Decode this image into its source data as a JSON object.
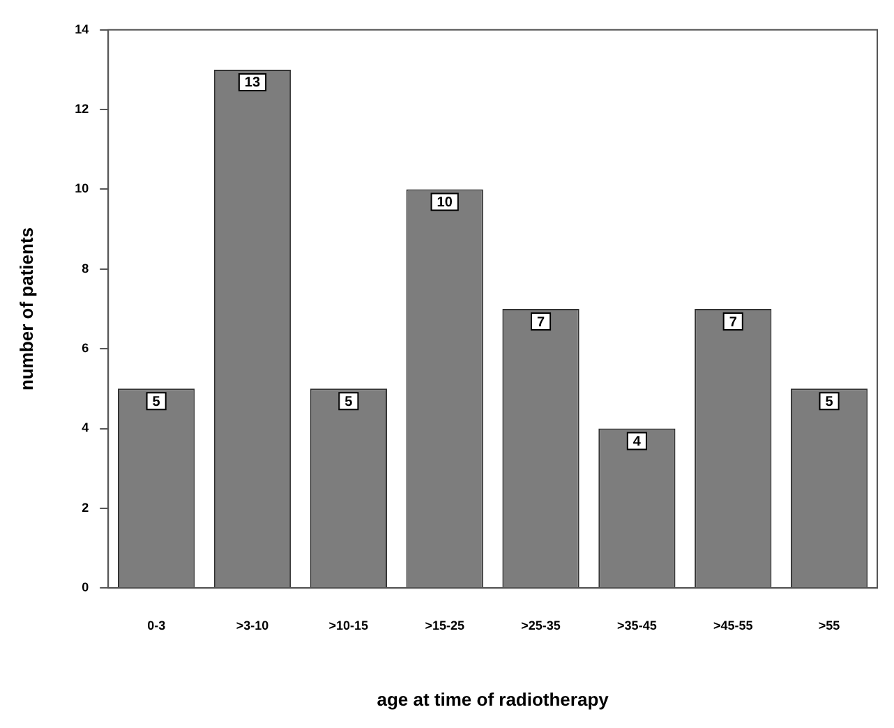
{
  "chart_data": {
    "type": "bar",
    "xlabel": "age at time of radiotherapy",
    "ylabel": "number of patients",
    "categories": [
      "0-3",
      ">3-10",
      ">10-15",
      ">15-25",
      ">25-35",
      ">35-45",
      ">45-55",
      ">55"
    ],
    "values": [
      5,
      13,
      5,
      10,
      7,
      4,
      7,
      5
    ],
    "color": "#7d7d7d",
    "ylim": [
      0,
      14
    ],
    "yticks": [
      0,
      2,
      4,
      6,
      8,
      10,
      12,
      14
    ],
    "grid": false,
    "data_labels": true
  }
}
